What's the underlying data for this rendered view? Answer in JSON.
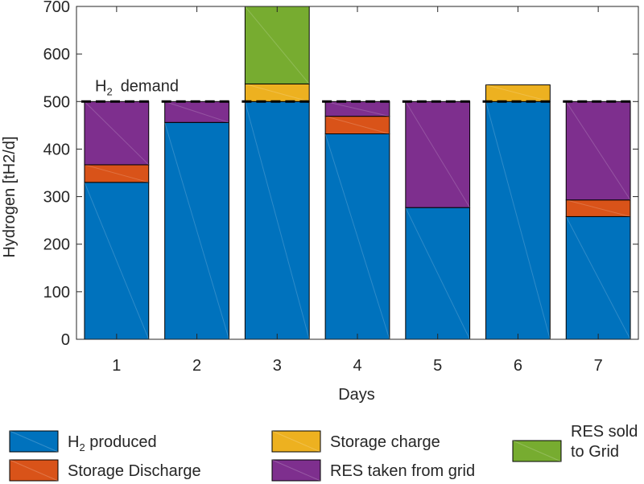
{
  "chart_data": {
    "type": "bar",
    "stacked": true,
    "xlabel": "Days",
    "ylabel": "Hydrogen [tH2/d]",
    "categories": [
      "1",
      "2",
      "3",
      "4",
      "5",
      "6",
      "7"
    ],
    "ylim": [
      0,
      700
    ],
    "yticks": [
      0,
      100,
      200,
      300,
      400,
      500,
      600,
      700
    ],
    "grid": false,
    "demand": {
      "value": 500,
      "label_main": "H",
      "label_sub": "2",
      "label_rest": "demand",
      "style": "dashed"
    },
    "series": [
      {
        "name": "H2 produced",
        "legend_main": "H",
        "legend_sub": "2",
        "legend_rest": " produced",
        "color": "#0072BD",
        "values": [
          330,
          456,
          500,
          432,
          277,
          500,
          258
        ]
      },
      {
        "name": "Storage Discharge",
        "legend_main": "Storage Discharge",
        "color": "#D95319",
        "values": [
          37,
          0,
          0,
          37,
          0,
          0,
          35
        ]
      },
      {
        "name": "RES taken from grid",
        "legend_main": "RES taken from grid",
        "color": "#7E2F8E",
        "values": [
          133,
          44,
          0,
          31,
          223,
          0,
          207
        ]
      },
      {
        "name": "Storage charge",
        "legend_main": "Storage charge",
        "color": "#EDB120",
        "values": [
          0,
          0,
          37,
          0,
          0,
          35,
          0
        ]
      },
      {
        "name": "RES sold to Grid",
        "legend_lines": [
          "RES sold",
          "to Grid"
        ],
        "color": "#77AC30",
        "values": [
          0,
          0,
          163,
          0,
          0,
          0,
          0
        ]
      }
    ],
    "legend_placement": "bottom",
    "legend_order": [
      0,
      3,
      4,
      1,
      2
    ]
  }
}
